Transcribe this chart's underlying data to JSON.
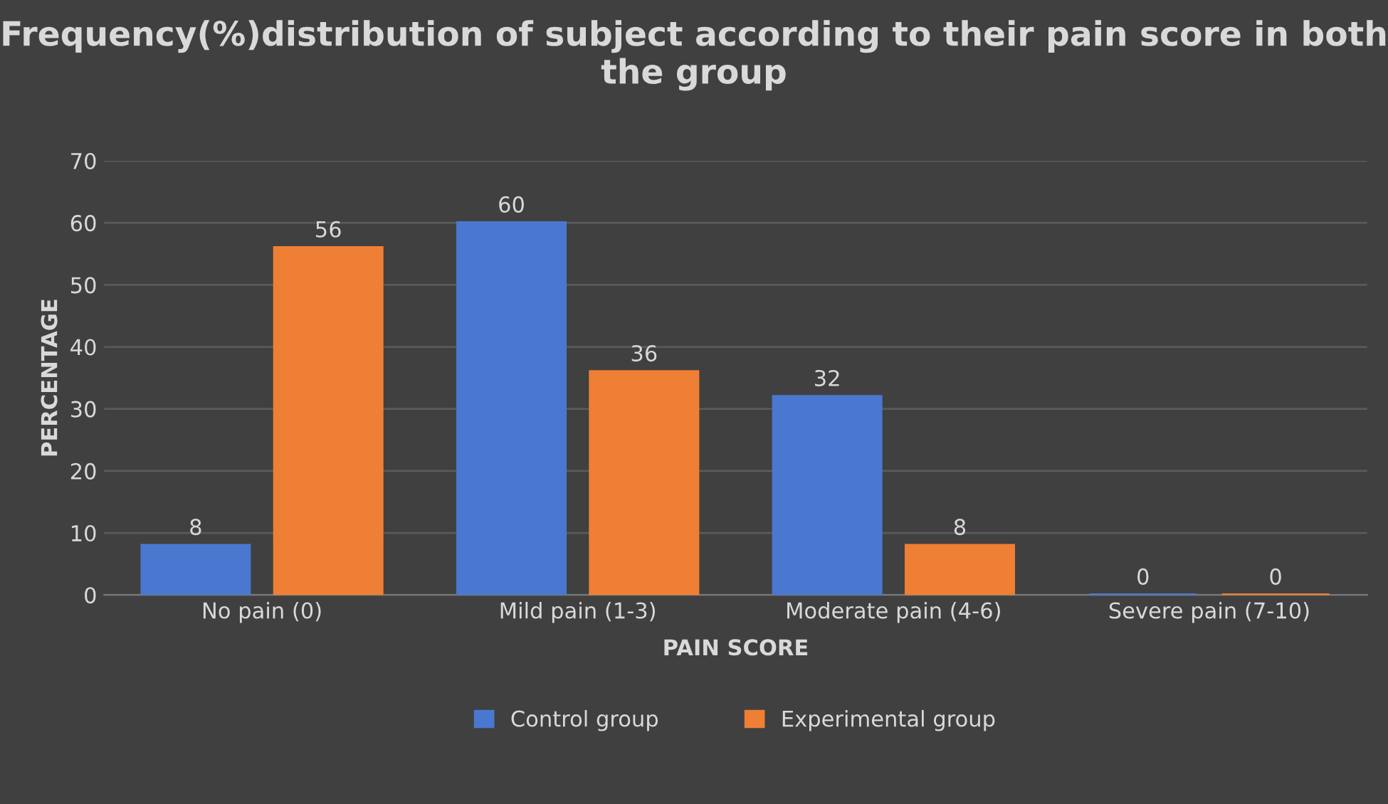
{
  "chart_data": {
    "type": "bar",
    "title": "Frequency(%)distribution of subject according to their pain score in both the group",
    "xlabel": "PAIN SCORE",
    "ylabel": "PERCENTAGE",
    "categories": [
      "No pain (0)",
      "Mild pain (1-3)",
      "Moderate pain (4-6)",
      "Severe pain (7-10)"
    ],
    "series": [
      {
        "name": "Control group",
        "color": "#4a78d0",
        "values": [
          8,
          60,
          32,
          0
        ]
      },
      {
        "name": "Experimental group",
        "color": "#ef7f35",
        "values": [
          56,
          36,
          8,
          0
        ]
      }
    ],
    "ylim": [
      0,
      70
    ],
    "yticks": [
      0,
      10,
      20,
      30,
      40,
      50,
      60,
      70
    ],
    "grid": "y",
    "legend": "bottom",
    "data_labels": true
  }
}
